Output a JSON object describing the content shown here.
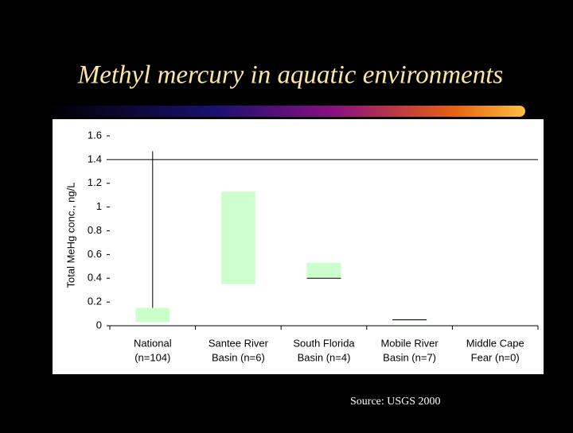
{
  "chart_data": {
    "type": "range-bar",
    "title": "Methyl mercury in aquatic environments",
    "y_label": "Total MeHg conc., ng/L",
    "categories": [
      [
        "National",
        "(n=104)"
      ],
      [
        "Santee River",
        "Basin (n=6)"
      ],
      [
        "South Florida",
        "Basin (n=4)"
      ],
      [
        "Mobile River",
        "Basin (n=7)"
      ],
      [
        "Middle Cape",
        "Fear (n=0)"
      ]
    ],
    "low": [
      0.03,
      0.35,
      0.4,
      0.04,
      null
    ],
    "high": [
      0.15,
      1.13,
      0.53,
      0.05,
      null
    ],
    "whisker_high": [
      1.47,
      null,
      null,
      null,
      null
    ],
    "line": [
      null,
      null,
      0.4,
      0.05,
      null
    ],
    "color": "#ccffcc",
    "ylim": [
      0,
      1.6
    ],
    "yticks": [
      0,
      0.2,
      0.4,
      0.6,
      0.8,
      1,
      1.2,
      1.4,
      1.6
    ],
    "reference_line": 1.4,
    "source": "Source:  USGS 2000"
  }
}
